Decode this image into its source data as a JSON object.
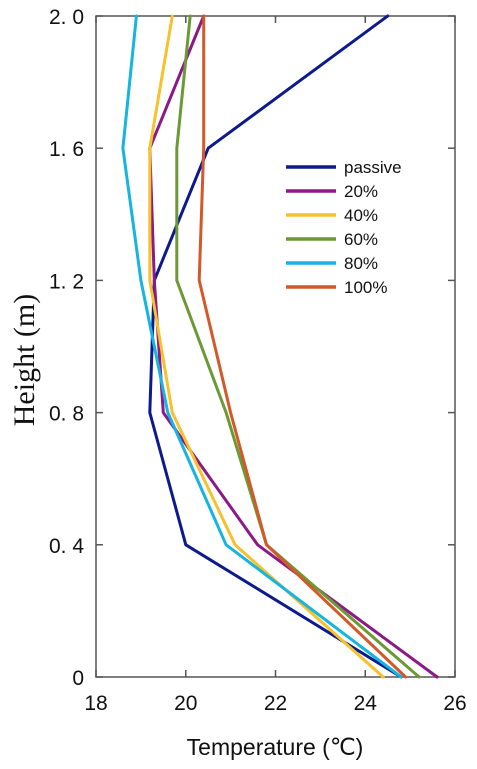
{
  "chart_data": {
    "type": "line",
    "title": "",
    "xlabel": "Temperature (℃)",
    "ylabel": "Height (m)",
    "xlim": [
      18,
      26
    ],
    "ylim": [
      0,
      2.0
    ],
    "x_ticks": [
      18,
      20,
      22,
      24,
      26
    ],
    "x_tick_labels": [
      "18",
      "20",
      "22",
      "24",
      "26"
    ],
    "y_ticks": [
      0,
      0.4,
      0.8,
      1.2,
      1.6,
      2.0
    ],
    "y_tick_labels": [
      "0",
      "0. 4",
      "0. 8",
      "1. 2",
      "1. 6",
      "2. 0"
    ],
    "grid": false,
    "legend_position": "upper-right",
    "heights": [
      0,
      0.4,
      0.8,
      1.2,
      1.6,
      2.0
    ],
    "series": [
      {
        "name": "passive",
        "color": "#0d1a8c",
        "temperatures": [
          24.8,
          20.0,
          19.2,
          19.3,
          20.5,
          24.5
        ]
      },
      {
        "name": "20%",
        "color": "#8b1a86",
        "temperatures": [
          25.6,
          21.6,
          19.5,
          19.3,
          19.2,
          20.4
        ]
      },
      {
        "name": "40%",
        "color": "#f7c12e",
        "temperatures": [
          24.4,
          21.1,
          19.7,
          19.2,
          19.2,
          19.7
        ]
      },
      {
        "name": "60%",
        "color": "#6a9a34",
        "temperatures": [
          25.2,
          21.8,
          20.9,
          19.8,
          19.8,
          20.1
        ]
      },
      {
        "name": "80%",
        "color": "#16b4df",
        "temperatures": [
          24.8,
          20.9,
          19.6,
          19.0,
          18.6,
          18.9
        ]
      },
      {
        "name": "100%",
        "color": "#d2592a",
        "temperatures": [
          24.9,
          21.8,
          21.0,
          20.3,
          20.4,
          20.4
        ]
      }
    ]
  }
}
